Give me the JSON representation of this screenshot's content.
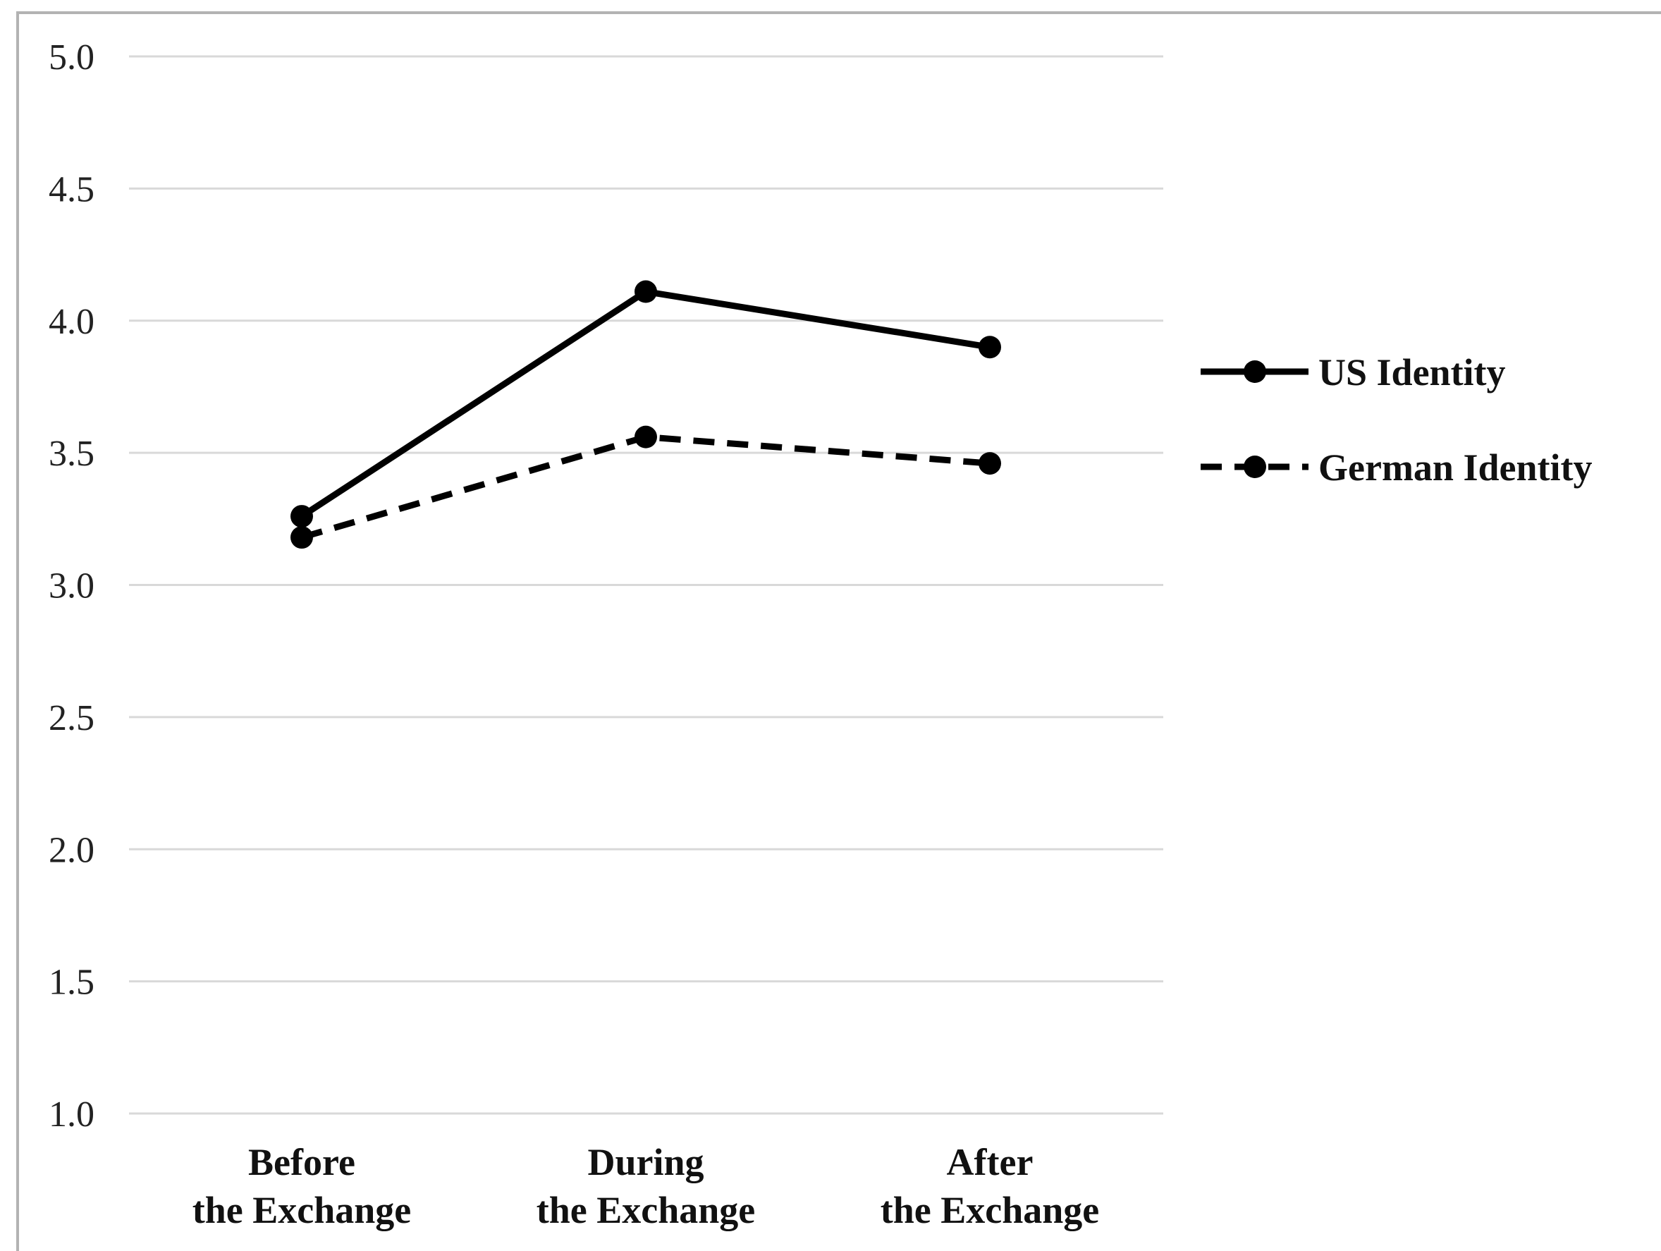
{
  "chart_data": {
    "type": "line",
    "title": "",
    "xlabel": "",
    "ylabel": "",
    "categories": [
      [
        "Before",
        "the Exchange"
      ],
      [
        "During",
        "the Exchange"
      ],
      [
        "After",
        "the Exchange"
      ]
    ],
    "ylim": [
      1.0,
      5.0
    ],
    "yticks": [
      "5.0",
      "4.5",
      "4.0",
      "3.5",
      "3.0",
      "2.5",
      "2.0",
      "1.5",
      "1.0"
    ],
    "grid": true,
    "legend_position": "right",
    "series": [
      {
        "name": "US Identity",
        "values": [
          3.26,
          4.11,
          3.9
        ],
        "line_style": "solid",
        "marker": "circle",
        "color": "#000000"
      },
      {
        "name": "German Identity",
        "values": [
          3.18,
          3.56,
          3.46
        ],
        "line_style": "dashed",
        "marker": "circle",
        "color": "#000000"
      }
    ],
    "colors": {
      "grid": "#d9d9d9",
      "frame": "#b3b3b3",
      "line": "#000000"
    }
  }
}
